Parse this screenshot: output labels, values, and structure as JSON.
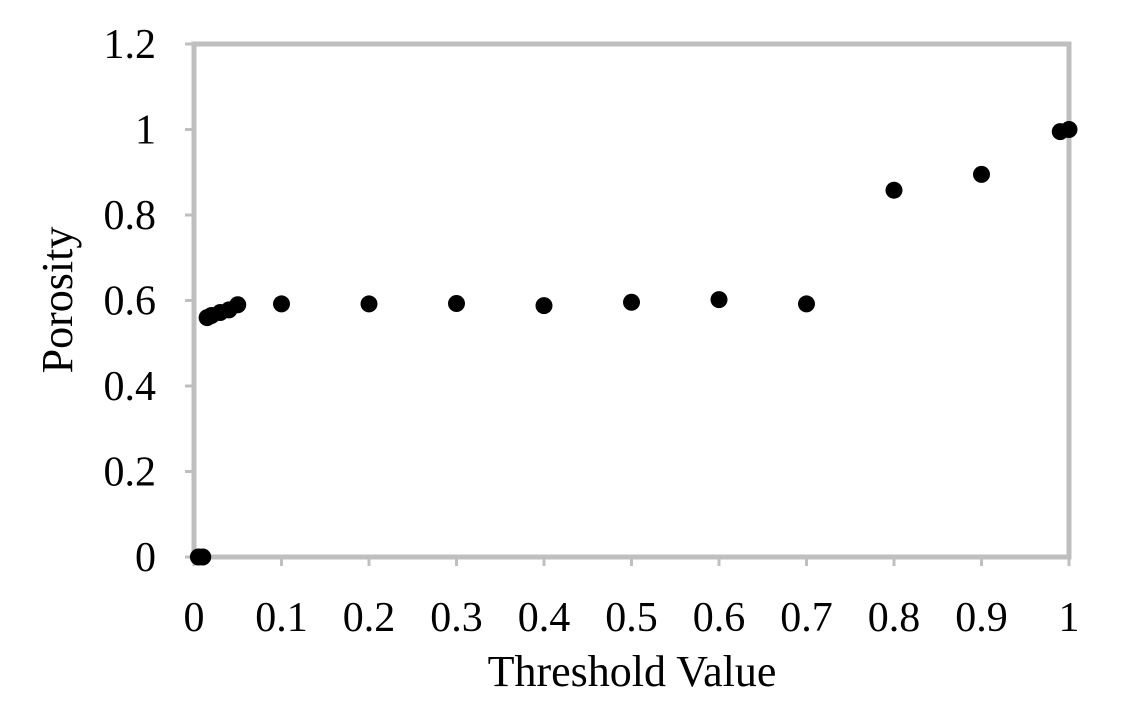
{
  "chart_data": {
    "type": "scatter",
    "title": "",
    "xlabel": "Threshold Value",
    "ylabel": "Porosity",
    "xlim": [
      0,
      1
    ],
    "ylim": [
      0,
      1.2
    ],
    "x_ticks": [
      0,
      0.1,
      0.2,
      0.3,
      0.4,
      0.5,
      0.6,
      0.7,
      0.8,
      0.9,
      1
    ],
    "x_tick_labels": [
      "0",
      "0.1",
      "0.2",
      "0.3",
      "0.4",
      "0.5",
      "0.6",
      "0.7",
      "0.8",
      "0.9",
      "1"
    ],
    "y_ticks": [
      0,
      0.2,
      0.4,
      0.6,
      0.8,
      1,
      1.2
    ],
    "y_tick_labels": [
      "0",
      "0.2",
      "0.4",
      "0.6",
      "0.8",
      "1",
      "1.2"
    ],
    "grid": false,
    "legend": "none",
    "series": [
      {
        "color": "#000000",
        "points": [
          {
            "x": 0.005,
            "y": 0.0
          },
          {
            "x": 0.01,
            "y": 0.0
          },
          {
            "x": 0.015,
            "y": 0.56
          },
          {
            "x": 0.02,
            "y": 0.565
          },
          {
            "x": 0.03,
            "y": 0.572
          },
          {
            "x": 0.04,
            "y": 0.578
          },
          {
            "x": 0.05,
            "y": 0.59
          },
          {
            "x": 0.1,
            "y": 0.592
          },
          {
            "x": 0.2,
            "y": 0.592
          },
          {
            "x": 0.3,
            "y": 0.593
          },
          {
            "x": 0.4,
            "y": 0.588
          },
          {
            "x": 0.5,
            "y": 0.596
          },
          {
            "x": 0.6,
            "y": 0.602
          },
          {
            "x": 0.7,
            "y": 0.592
          },
          {
            "x": 0.8,
            "y": 0.858
          },
          {
            "x": 0.9,
            "y": 0.895
          },
          {
            "x": 0.99,
            "y": 0.995
          },
          {
            "x": 1.0,
            "y": 1.0
          }
        ]
      }
    ],
    "colors": {
      "frame": "#bfbfbf",
      "marker": "#000000",
      "text": "#000000"
    }
  }
}
